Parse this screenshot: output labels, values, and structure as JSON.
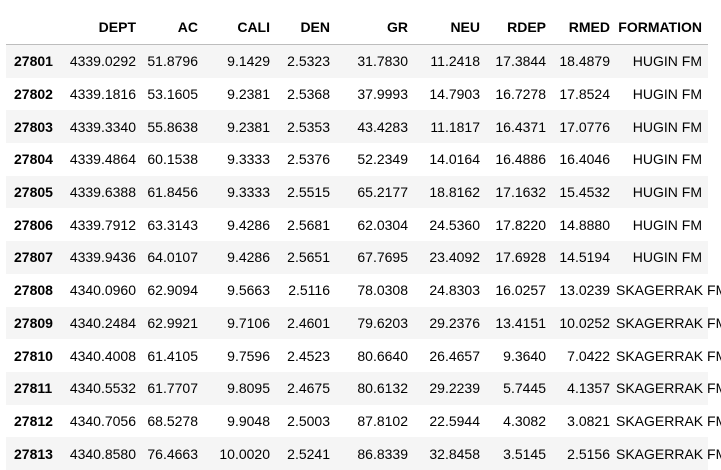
{
  "table": {
    "index_header": "",
    "columns": [
      "DEPT",
      "AC",
      "CALI",
      "DEN",
      "GR",
      "NEU",
      "RDEP",
      "RMED",
      "FORMATION"
    ],
    "rows": [
      {
        "index": "27801",
        "cells": [
          "4339.0292",
          "51.8796",
          "9.1429",
          "2.5323",
          "31.7830",
          "11.2418",
          "17.3844",
          "18.4879",
          "HUGIN FM"
        ]
      },
      {
        "index": "27802",
        "cells": [
          "4339.1816",
          "53.1605",
          "9.2381",
          "2.5368",
          "37.9993",
          "14.7903",
          "16.7278",
          "17.8524",
          "HUGIN FM"
        ]
      },
      {
        "index": "27803",
        "cells": [
          "4339.3340",
          "55.8638",
          "9.2381",
          "2.5353",
          "43.4283",
          "11.1817",
          "16.4371",
          "17.0776",
          "HUGIN FM"
        ]
      },
      {
        "index": "27804",
        "cells": [
          "4339.4864",
          "60.1538",
          "9.3333",
          "2.5376",
          "52.2349",
          "14.0164",
          "16.4886",
          "16.4046",
          "HUGIN FM"
        ]
      },
      {
        "index": "27805",
        "cells": [
          "4339.6388",
          "61.8456",
          "9.3333",
          "2.5515",
          "65.2177",
          "18.8162",
          "17.1632",
          "15.4532",
          "HUGIN FM"
        ]
      },
      {
        "index": "27806",
        "cells": [
          "4339.7912",
          "63.3143",
          "9.4286",
          "2.5681",
          "62.0304",
          "24.5360",
          "17.8220",
          "14.8880",
          "HUGIN FM"
        ]
      },
      {
        "index": "27807",
        "cells": [
          "4339.9436",
          "64.0107",
          "9.4286",
          "2.5651",
          "67.7695",
          "23.4092",
          "17.6928",
          "14.5194",
          "HUGIN FM"
        ]
      },
      {
        "index": "27808",
        "cells": [
          "4340.0960",
          "62.9094",
          "9.5663",
          "2.5116",
          "78.0308",
          "24.8303",
          "16.0257",
          "13.0239",
          "SKAGERRAK FM"
        ]
      },
      {
        "index": "27809",
        "cells": [
          "4340.2484",
          "62.9921",
          "9.7106",
          "2.4601",
          "79.6203",
          "29.2376",
          "13.4151",
          "10.0252",
          "SKAGERRAK FM"
        ]
      },
      {
        "index": "27810",
        "cells": [
          "4340.4008",
          "61.4105",
          "9.7596",
          "2.4523",
          "80.6640",
          "26.4657",
          "9.3640",
          "7.0422",
          "SKAGERRAK FM"
        ]
      },
      {
        "index": "27811",
        "cells": [
          "4340.5532",
          "61.7707",
          "9.8095",
          "2.4675",
          "80.6132",
          "29.2239",
          "5.7445",
          "4.1357",
          "SKAGERRAK FM"
        ]
      },
      {
        "index": "27812",
        "cells": [
          "4340.7056",
          "68.5278",
          "9.9048",
          "2.5003",
          "87.8102",
          "22.5944",
          "4.3082",
          "3.0821",
          "SKAGERRAK FM"
        ]
      },
      {
        "index": "27813",
        "cells": [
          "4340.8580",
          "76.4663",
          "10.0020",
          "2.5241",
          "86.8339",
          "32.8458",
          "3.5145",
          "2.5156",
          "SKAGERRAK FM"
        ]
      }
    ]
  },
  "colors": {
    "stripe": "#f5f5f5",
    "background": "#ffffff",
    "header_rule": "#bdbdbd"
  }
}
